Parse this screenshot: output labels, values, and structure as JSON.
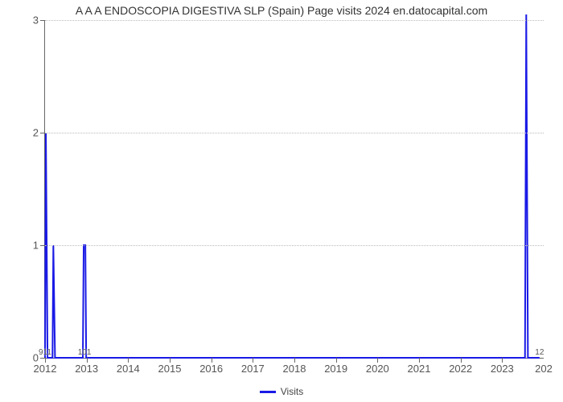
{
  "chart": {
    "type": "line",
    "title": "A A A ENDOSCOPIA DIGESTIVA SLP (Spain) Page visits 2024 en.datocapital.com",
    "title_fontsize": 14,
    "line_color": "#1a1ae6",
    "line_width": 2,
    "grid_color": "#bbbbbb",
    "axis_color": "#666666",
    "background_color": "#ffffff",
    "x_min": 2012,
    "x_max": 2024,
    "x_ticks": [
      2012,
      2013,
      2014,
      2015,
      2016,
      2017,
      2018,
      2019,
      2020,
      2021,
      2022,
      2023
    ],
    "y_min": 0,
    "y_max": 3,
    "y_ticks": [
      0,
      1,
      2,
      3
    ],
    "points": [
      {
        "x": 2012.0,
        "y": 0
      },
      {
        "x": 2012.02,
        "y": 2
      },
      {
        "x": 2012.06,
        "y": 0
      },
      {
        "x": 2012.18,
        "y": 0
      },
      {
        "x": 2012.2,
        "y": 1
      },
      {
        "x": 2012.24,
        "y": 0
      },
      {
        "x": 2012.91,
        "y": 0
      },
      {
        "x": 2012.93,
        "y": 1
      },
      {
        "x": 2012.97,
        "y": 1
      },
      {
        "x": 2012.99,
        "y": 0
      },
      {
        "x": 2023.55,
        "y": 0
      },
      {
        "x": 2023.58,
        "y": 3.05
      },
      {
        "x": 2023.62,
        "y": 0
      },
      {
        "x": 2023.9,
        "y": 0
      }
    ],
    "bar_labels": [
      {
        "x": 2012.0,
        "text": "911"
      },
      {
        "x": 2012.95,
        "text": "101"
      },
      {
        "x": 2023.9,
        "text": "12"
      }
    ],
    "legend_label": "Visits"
  }
}
